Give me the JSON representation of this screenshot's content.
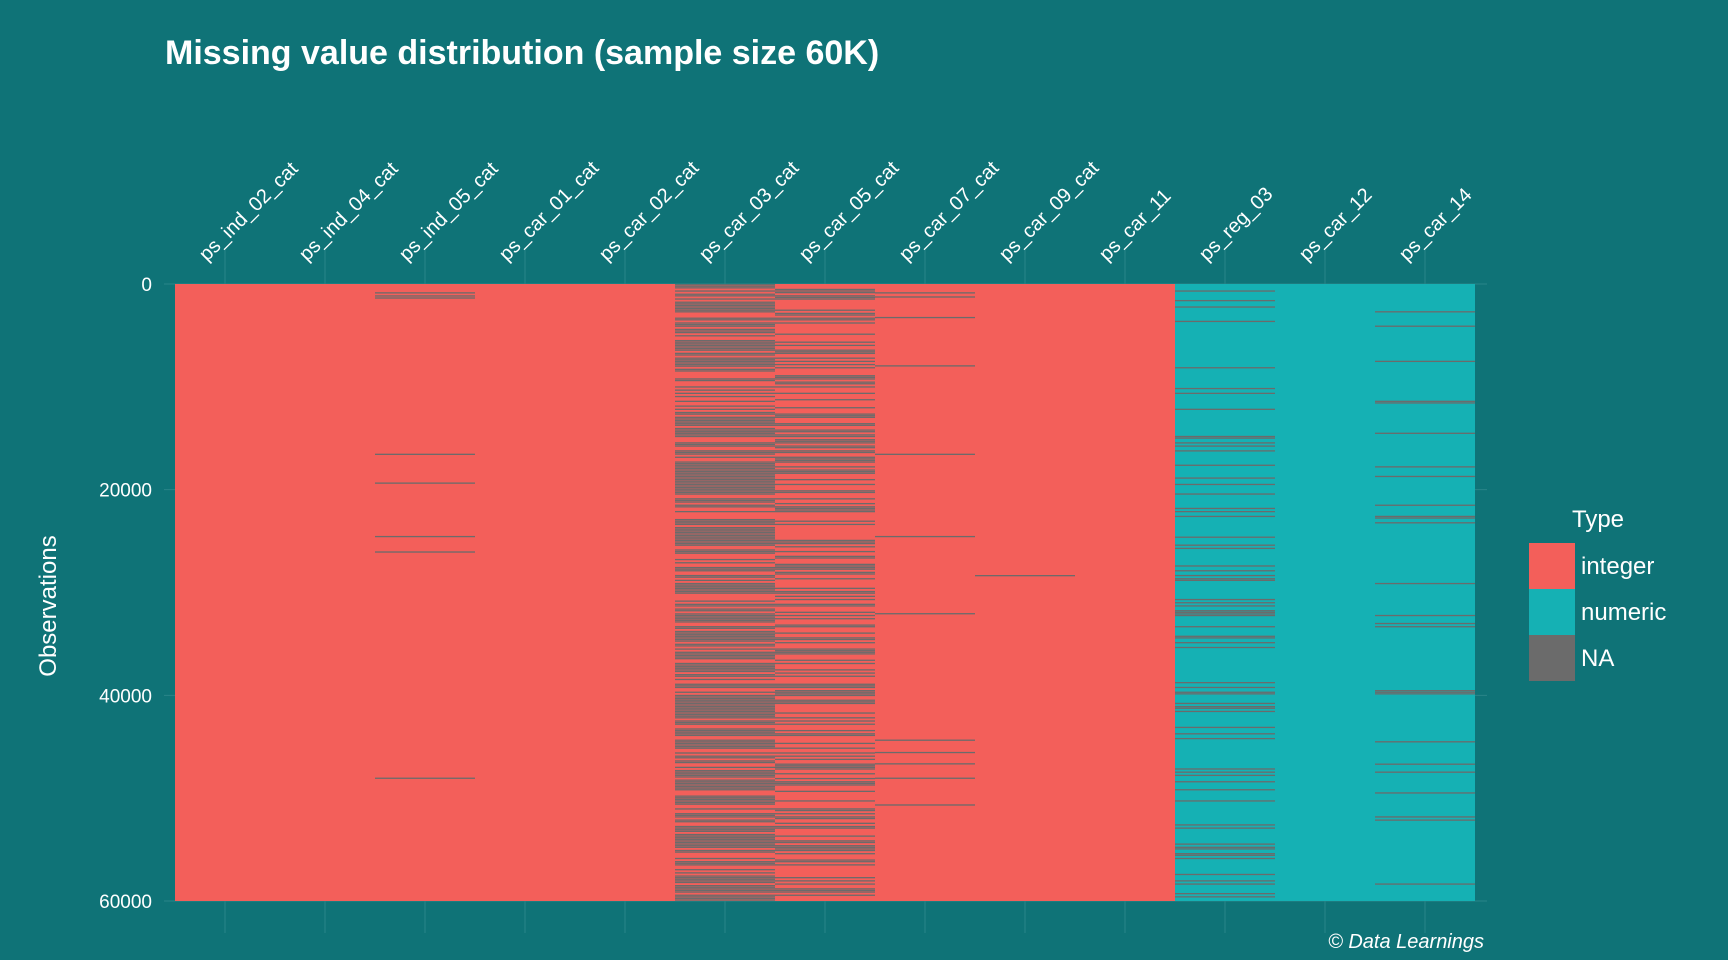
{
  "chart_data": {
    "type": "heatmap",
    "title": "Missing value distribution (sample size 60K)",
    "xlabel": "",
    "ylabel": "Observations",
    "caption": "© Data Learnings",
    "ylim": [
      0,
      60000
    ],
    "y_ticks": [
      0,
      20000,
      40000,
      60000
    ],
    "x_axis_position": "top",
    "grid": true,
    "legend": {
      "title": "Type",
      "placement": "right",
      "entries": [
        {
          "label": "integer",
          "color": "#f35f5a"
        },
        {
          "label": "numeric",
          "color": "#15b1b4"
        },
        {
          "label": "NA",
          "color": "#6b6b6b"
        }
      ]
    },
    "columns": [
      {
        "name": "ps_ind_02_cat",
        "type": "integer",
        "na_rows": []
      },
      {
        "name": "ps_ind_04_cat",
        "type": "integer",
        "na_rows": []
      },
      {
        "name": "ps_ind_05_cat",
        "type": "integer",
        "na_rows": [
          800,
          1100,
          1300,
          16500,
          19300,
          24500,
          26000,
          48000
        ]
      },
      {
        "name": "ps_car_01_cat",
        "type": "integer",
        "na_rows": []
      },
      {
        "name": "ps_car_02_cat",
        "type": "integer",
        "na_rows": []
      },
      {
        "name": "ps_car_03_cat",
        "type": "integer",
        "na_fraction": 0.69
      },
      {
        "name": "ps_car_05_cat",
        "type": "integer",
        "na_fraction": 0.45
      },
      {
        "name": "ps_car_07_cat",
        "type": "integer",
        "na_rows": [
          800,
          1200,
          3200,
          7900,
          16500,
          24500,
          32000,
          44300,
          45500,
          46600,
          48000,
          50600
        ]
      },
      {
        "name": "ps_car_09_cat",
        "type": "integer",
        "na_rows": [
          28300
        ]
      },
      {
        "name": "ps_car_11",
        "type": "integer",
        "na_rows": []
      },
      {
        "name": "ps_reg_03",
        "type": "numeric",
        "na_fraction": 0.18
      },
      {
        "name": "ps_car_12",
        "type": "numeric",
        "na_rows": []
      },
      {
        "name": "ps_car_14",
        "type": "numeric",
        "na_fraction": 0.07
      }
    ]
  }
}
